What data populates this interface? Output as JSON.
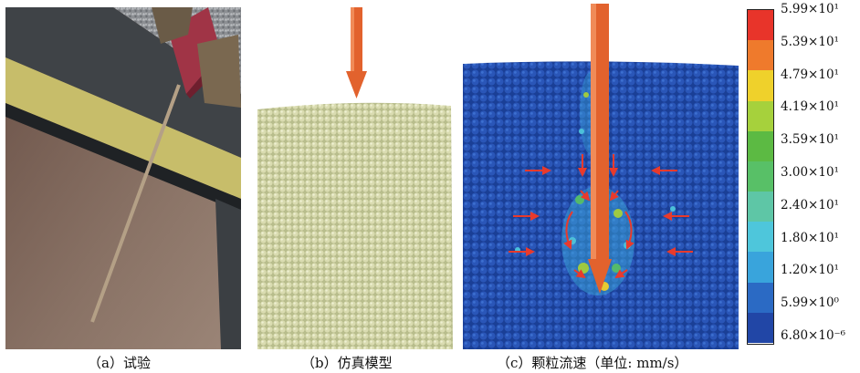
{
  "captions": {
    "a": "（a）试验",
    "b": "（b）仿真模型",
    "c": "（c）颗粒流速（单位: mm/s）"
  },
  "legend": {
    "labels": [
      "5.99×10¹",
      "5.39×10¹",
      "4.79×10¹",
      "4.19×10¹",
      "3.59×10¹",
      "3.00×10¹",
      "2.40×10¹",
      "1.80×10¹",
      "1.20×10¹",
      "5.99×10⁰",
      "6.80×10⁻⁶"
    ],
    "colors": [
      "#e8342a",
      "#ef7a2c",
      "#efd12b",
      "#a6d13c",
      "#5cba43",
      "#58c067",
      "#5ec6a6",
      "#4ec6db",
      "#39a4dc",
      "#2b6ac4",
      "#2146a6"
    ]
  },
  "colors": {
    "probe_orange": "#e2622d",
    "particle_cream": "#d8dcae",
    "flow_field_blue": "#1f4fb0",
    "arrow_red": "#e83a2c"
  }
}
